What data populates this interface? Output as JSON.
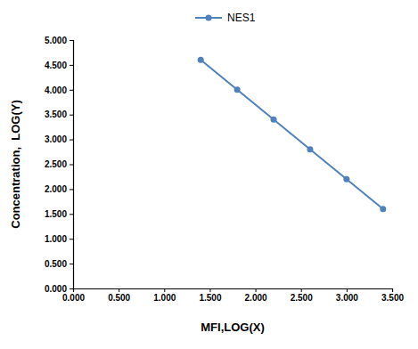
{
  "chart_data": {
    "type": "line",
    "x_label": "MFI,LOG(X)",
    "y_label": "Concentration,  LOG(Y)",
    "x": [
      1.4,
      1.8,
      2.2,
      2.6,
      3.0,
      3.4
    ],
    "series": [
      {
        "name": "NES1",
        "color": "#4f81bd",
        "marker": "circle",
        "values": [
          4.6,
          4.0,
          3.4,
          2.8,
          2.2,
          1.6
        ]
      }
    ],
    "xlim": [
      0,
      3.5
    ],
    "ylim": [
      0,
      5
    ],
    "xticks": [
      {
        "value": 0,
        "label": "0.000"
      },
      {
        "value": 0.5,
        "label": "0.500"
      },
      {
        "value": 1,
        "label": "1.000"
      },
      {
        "value": 1.5,
        "label": "1.500"
      },
      {
        "value": 2,
        "label": "2.000"
      },
      {
        "value": 2.5,
        "label": "2.500"
      },
      {
        "value": 3,
        "label": "3.000"
      },
      {
        "value": 3.5,
        "label": "3.500"
      }
    ],
    "yticks": [
      {
        "value": 0,
        "label": "0.000"
      },
      {
        "value": 0.5,
        "label": "0.500"
      },
      {
        "value": 1,
        "label": "1.000"
      },
      {
        "value": 1.5,
        "label": "1.500"
      },
      {
        "value": 2,
        "label": "2.000"
      },
      {
        "value": 2.5,
        "label": "2.500"
      },
      {
        "value": 3,
        "label": "3.000"
      },
      {
        "value": 3.5,
        "label": "3.500"
      },
      {
        "value": 4,
        "label": "4.000"
      },
      {
        "value": 4.5,
        "label": "4.500"
      },
      {
        "value": 5,
        "label": "5.000"
      }
    ],
    "grid": false,
    "legend": "top"
  }
}
